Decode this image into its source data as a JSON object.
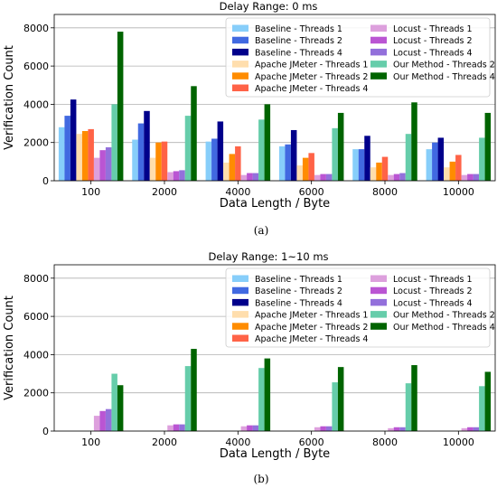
{
  "series_colors": [
    "#87cefa",
    "#4169e1",
    "#00008b",
    "#ffdead",
    "#ff8c00",
    "#ff6347",
    "#dda0dd",
    "#ba55d3",
    "#9370db",
    "#66cdaa",
    "#006400"
  ],
  "chart_data": [
    {
      "type": "bar",
      "title": "Delay Range: 0 ms",
      "xlabel": "Data Length / Byte",
      "ylabel": "Verification Count",
      "caption": "(a)",
      "ylim": [
        0,
        8700
      ],
      "yticks": [
        "0",
        "2000",
        "4000",
        "6000",
        "8000"
      ],
      "ytick_values": [
        0,
        2000,
        4000,
        6000,
        8000
      ],
      "grid": true,
      "legend_position": "top-right",
      "categories": [
        "100",
        "2000",
        "4000",
        "6000",
        "8000",
        "10000"
      ],
      "series": [
        {
          "name": "Baseline - Threads 1",
          "values": [
            2800,
            2150,
            2050,
            1800,
            1650,
            1650
          ]
        },
        {
          "name": "Baseline - Threads 2",
          "values": [
            3400,
            3000,
            2200,
            1900,
            1650,
            2000
          ]
        },
        {
          "name": "Baseline - Threads 4",
          "values": [
            4250,
            3650,
            3100,
            2650,
            2350,
            2250
          ]
        },
        {
          "name": "Apache JMeter - Threads 1",
          "values": [
            2450,
            1200,
            950,
            800,
            700,
            700
          ]
        },
        {
          "name": "Apache JMeter - Threads 2",
          "values": [
            2600,
            2000,
            1400,
            1200,
            950,
            1000
          ]
        },
        {
          "name": "Apache JMeter - Threads 4",
          "values": [
            2700,
            2050,
            1800,
            1450,
            1250,
            1350
          ]
        },
        {
          "name": "Locust - Threads 1",
          "values": [
            1200,
            450,
            300,
            300,
            300,
            300
          ]
        },
        {
          "name": "Locust - Threads 2",
          "values": [
            1600,
            500,
            400,
            350,
            350,
            350
          ]
        },
        {
          "name": "Locust - Threads 4",
          "values": [
            1750,
            550,
            400,
            350,
            400,
            350
          ]
        },
        {
          "name": "Our Method - Threads 2",
          "values": [
            4000,
            3400,
            3200,
            2750,
            2450,
            2250
          ]
        },
        {
          "name": "Our Method - Threads 4",
          "values": [
            7800,
            4950,
            4000,
            3550,
            4100,
            3550
          ]
        }
      ]
    },
    {
      "type": "bar",
      "title": "Delay Range: 1~10 ms",
      "xlabel": "Data Length / Byte",
      "ylabel": "Verification Count",
      "caption": "(b)",
      "ylim": [
        0,
        8700
      ],
      "yticks": [
        "0",
        "2000",
        "4000",
        "6000",
        "8000"
      ],
      "ytick_values": [
        0,
        2000,
        4000,
        6000,
        8000
      ],
      "grid": true,
      "legend_position": "top-right",
      "categories": [
        "100",
        "2000",
        "4000",
        "6000",
        "8000",
        "10000"
      ],
      "series": [
        {
          "name": "Baseline - Threads 1",
          "values": [
            0,
            0,
            0,
            0,
            0,
            0
          ]
        },
        {
          "name": "Baseline - Threads 2",
          "values": [
            0,
            0,
            0,
            0,
            0,
            0
          ]
        },
        {
          "name": "Baseline - Threads 4",
          "values": [
            0,
            0,
            0,
            0,
            0,
            0
          ]
        },
        {
          "name": "Apache JMeter - Threads 1",
          "values": [
            0,
            0,
            0,
            0,
            0,
            0
          ]
        },
        {
          "name": "Apache JMeter - Threads 2",
          "values": [
            0,
            0,
            0,
            0,
            0,
            0
          ]
        },
        {
          "name": "Apache JMeter - Threads 4",
          "values": [
            0,
            0,
            0,
            0,
            0,
            0
          ]
        },
        {
          "name": "Locust - Threads 1",
          "values": [
            800,
            300,
            250,
            200,
            150,
            150
          ]
        },
        {
          "name": "Locust - Threads 2",
          "values": [
            1050,
            350,
            300,
            250,
            200,
            200
          ]
        },
        {
          "name": "Locust - Threads 4",
          "values": [
            1150,
            350,
            300,
            250,
            200,
            200
          ]
        },
        {
          "name": "Our Method - Threads 2",
          "values": [
            3000,
            3400,
            3300,
            2550,
            2500,
            2350
          ]
        },
        {
          "name": "Our Method - Threads 4",
          "values": [
            2400,
            4300,
            3800,
            3350,
            3450,
            3100
          ]
        }
      ]
    }
  ]
}
